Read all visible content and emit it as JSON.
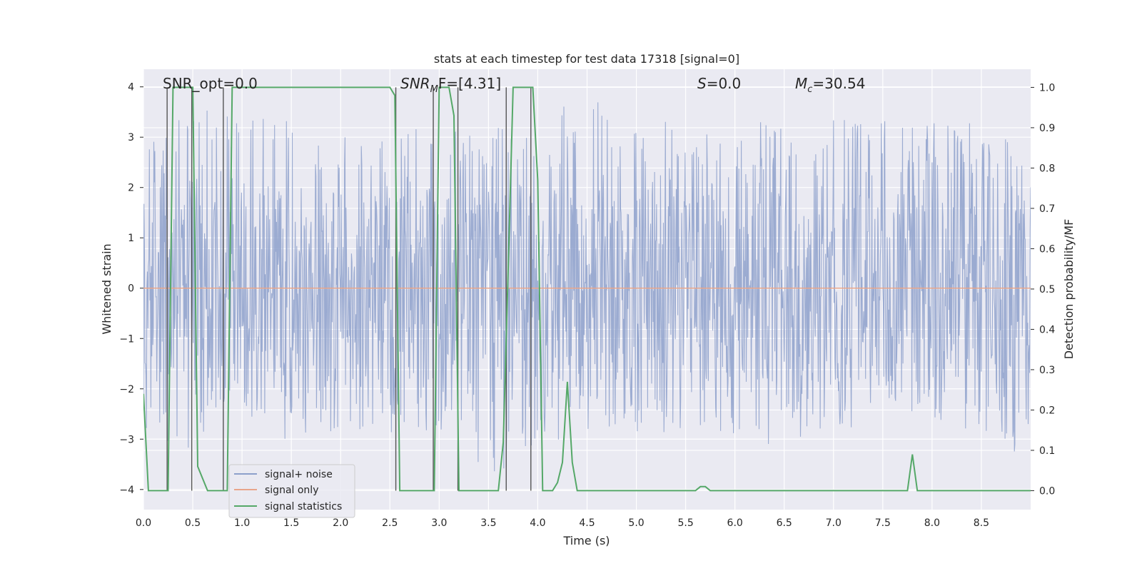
{
  "chart_data": {
    "type": "line",
    "title": "stats at each timestep for test data 17318 [signal=0]",
    "xlabel": "Time (s)",
    "ylabel_left": "Whitened strain",
    "ylabel_right": "Detection probability/MF",
    "xlim": [
      0.0,
      9.0
    ],
    "ylim_left": [
      -4.4,
      4.35
    ],
    "ylim_right": [
      -0.047,
      1.045
    ],
    "x_ticks": [
      "0.0",
      "0.5",
      "1.0",
      "1.5",
      "2.0",
      "2.5",
      "3.0",
      "3.5",
      "4.0",
      "4.5",
      "5.0",
      "5.5",
      "6.0",
      "6.5",
      "7.0",
      "7.5",
      "8.0",
      "8.5"
    ],
    "y_left_ticks": [
      "−4",
      "−3",
      "−2",
      "−1",
      "0",
      "1",
      "2",
      "3",
      "4"
    ],
    "y_right_ticks": [
      "0.0",
      "0.1",
      "0.2",
      "0.3",
      "0.4",
      "0.5",
      "0.6",
      "0.7",
      "0.8",
      "0.9",
      "1.0"
    ],
    "grid": true,
    "legend_position": "lower-left",
    "annotations": {
      "snr_opt": "SNR_opt=0.0",
      "snr_mf_base": "SNR",
      "snr_mf_sub": "M",
      "snr_mf_rest": "F=[4.31]",
      "s_italic": "S",
      "s_rest": "=0.0",
      "mc_base": "M",
      "mc_sub": "c",
      "mc_rest": "=30.54"
    },
    "series": [
      {
        "name": "signal+ noise",
        "color": "#8da0cb",
        "axis": "left",
        "note": "dense whitened-strain noise, roughly between -3.8 and 4.0",
        "envelope_x": [
          0.0,
          0.5,
          1.0,
          1.5,
          2.0,
          2.5,
          3.0,
          3.5,
          4.0,
          4.5,
          5.0,
          5.5,
          6.0,
          6.5,
          7.0,
          7.5,
          8.0,
          8.5,
          9.0
        ],
        "envelope_upper": [
          2.7,
          3.9,
          3.5,
          3.75,
          3.1,
          3.0,
          3.45,
          3.2,
          3.3,
          3.9,
          3.3,
          3.35,
          3.2,
          3.4,
          3.35,
          3.4,
          3.3,
          3.35,
          2.8
        ],
        "envelope_lower": [
          -2.9,
          -3.3,
          -2.6,
          -3.3,
          -3.0,
          -3.0,
          -2.9,
          -3.9,
          -3.1,
          -2.95,
          -2.9,
          -2.85,
          -3.2,
          -3.1,
          -2.7,
          -2.95,
          -2.6,
          -2.95,
          -3.4
        ]
      },
      {
        "name": "signal only",
        "color": "#e8a58a",
        "axis": "left",
        "x": [
          0.0,
          9.0
        ],
        "y": [
          0.0,
          0.0
        ]
      },
      {
        "name": "signal statistics",
        "color": "#55a868",
        "axis": "right",
        "x": [
          0.0,
          0.05,
          0.1,
          0.15,
          0.2,
          0.25,
          0.3,
          0.35,
          0.4,
          0.45,
          0.5,
          0.55,
          0.6,
          0.65,
          0.7,
          0.75,
          0.8,
          0.85,
          0.9,
          0.95,
          1.0,
          1.5,
          2.0,
          2.5,
          2.55,
          2.6,
          2.65,
          2.7,
          2.75,
          2.8,
          2.85,
          2.9,
          2.95,
          3.0,
          3.05,
          3.1,
          3.15,
          3.2,
          3.25,
          3.3,
          3.35,
          3.4,
          3.45,
          3.5,
          3.55,
          3.6,
          3.65,
          3.7,
          3.75,
          3.8,
          3.85,
          3.9,
          3.95,
          4.0,
          4.05,
          4.1,
          4.15,
          4.2,
          4.25,
          4.3,
          4.35,
          4.4,
          4.5,
          5.0,
          5.5,
          5.55,
          5.6,
          5.65,
          5.7,
          5.75,
          5.8,
          6.0,
          6.5,
          7.0,
          7.5,
          7.7,
          7.75,
          7.8,
          7.85,
          7.9,
          8.0,
          8.5,
          9.0
        ],
        "y": [
          0.24,
          0.0,
          0.0,
          0.0,
          0.0,
          0.0,
          1.0,
          1.0,
          1.0,
          1.0,
          1.0,
          0.06,
          0.03,
          0.0,
          0.0,
          0.0,
          0.0,
          0.0,
          1.0,
          1.0,
          1.0,
          1.0,
          1.0,
          1.0,
          0.98,
          0.0,
          0.0,
          0.0,
          0.0,
          0.0,
          0.0,
          0.0,
          0.0,
          1.0,
          1.0,
          1.0,
          0.93,
          0.0,
          0.0,
          0.0,
          0.0,
          0.0,
          0.0,
          0.0,
          0.0,
          0.0,
          0.12,
          0.55,
          1.0,
          1.0,
          1.0,
          1.0,
          1.0,
          0.77,
          0.0,
          0.0,
          0.0,
          0.02,
          0.07,
          0.27,
          0.07,
          0.0,
          0.0,
          0.0,
          0.0,
          0.0,
          0.0,
          0.01,
          0.01,
          0.0,
          0.0,
          0.0,
          0.0,
          0.0,
          0.0,
          0.0,
          0.0,
          0.09,
          0.0,
          0.0,
          0.0,
          0.0,
          0.0
        ]
      }
    ],
    "vertical_markers_x": [
      0.24,
      0.49,
      0.81,
      2.56,
      2.94,
      3.19,
      3.68,
      3.93
    ]
  }
}
